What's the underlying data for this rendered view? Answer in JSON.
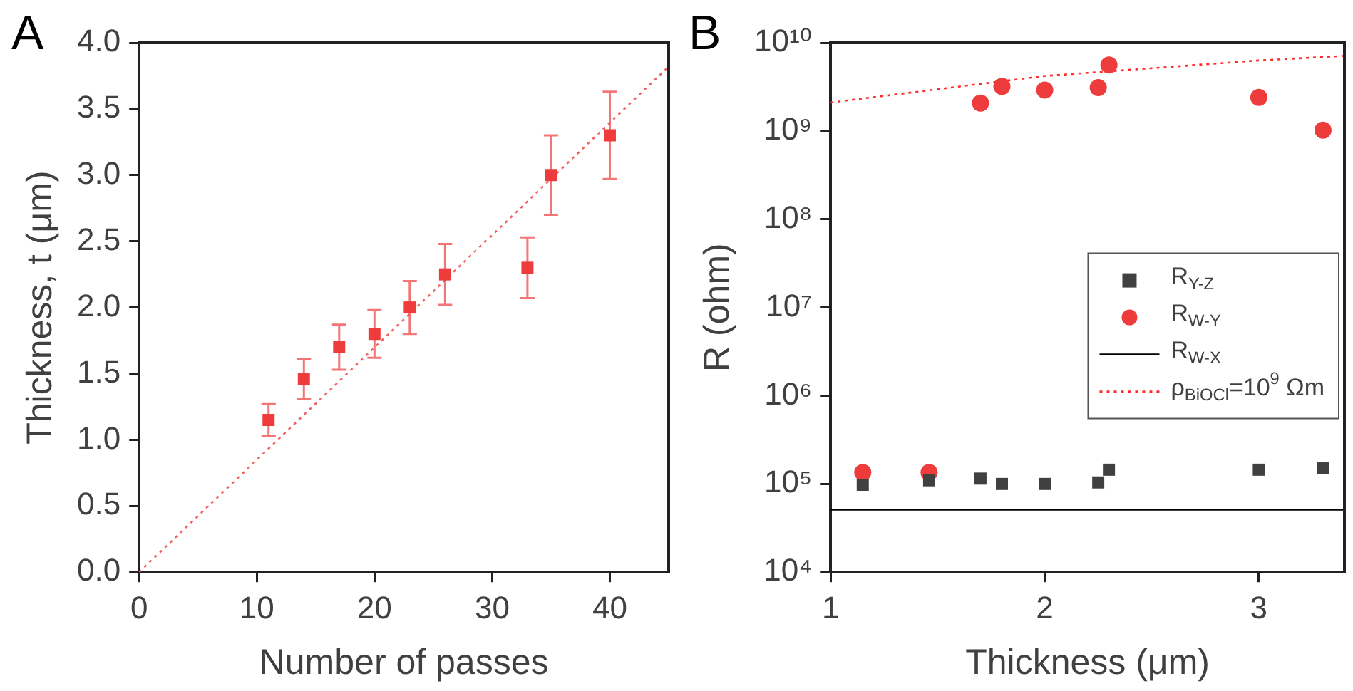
{
  "chart_data": [
    {
      "type": "scatter",
      "xlabel": "Number of passes",
      "ylabel": "Thickness, t (μm)",
      "annotations": [
        "A"
      ],
      "xlim": [
        0,
        45
      ],
      "xticks": [
        0,
        10,
        20,
        30,
        40
      ],
      "ylim": [
        0,
        4
      ],
      "yticks": [
        {
          "value": 0,
          "label": "0.0"
        },
        0.5,
        {
          "value": 1,
          "label": "1.0"
        },
        1.5,
        {
          "value": 2,
          "label": "2.0"
        },
        2.5,
        {
          "value": 3,
          "label": "3.0"
        },
        3.5,
        {
          "value": 4,
          "label": "4.0"
        }
      ],
      "grid": false,
      "legend": false,
      "series": [
        {
          "type": "scatter",
          "marker": "square",
          "color": "#ee3b3b",
          "x": [
            11,
            14,
            17,
            20,
            23,
            26,
            33,
            35,
            40
          ],
          "values": [
            1.15,
            1.46,
            1.7,
            1.8,
            2.0,
            2.25,
            2.3,
            3.0,
            3.3
          ],
          "errors": [
            0.12,
            0.15,
            0.17,
            0.18,
            0.2,
            0.23,
            0.23,
            0.3,
            0.33
          ]
        },
        {
          "type": "line",
          "line_style": "dotted",
          "color": "#f26060",
          "x": [
            0,
            45
          ],
          "values": [
            0,
            3.82
          ]
        }
      ]
    },
    {
      "type": "scatter",
      "xlabel": "Thickness (μm)",
      "ylabel": "R (ohm)",
      "annotations": [
        "B"
      ],
      "log": "y",
      "xlim": [
        1,
        3.4
      ],
      "xticks": [
        1,
        2,
        3
      ],
      "ylim": [
        10000,
        10000000000
      ],
      "yticks": [
        {
          "value": 10000,
          "label": "10⁴"
        },
        {
          "value": 100000,
          "label": "10⁵"
        },
        {
          "value": 1000000,
          "label": "10⁶"
        },
        {
          "value": 10000000,
          "label": "10⁷"
        },
        {
          "value": 100000000,
          "label": "10⁸"
        },
        {
          "value": 1000000000,
          "label": "10⁹"
        },
        {
          "value": 10000000000,
          "label": "10¹⁰"
        }
      ],
      "grid": false,
      "legend": "right",
      "series": [
        {
          "name": "R$_{Y-Z}$",
          "type": "scatter",
          "marker": "square",
          "color": "#404040",
          "x": [
            1.15,
            1.46,
            1.7,
            1.8,
            2.0,
            2.25,
            2.3,
            3.0,
            3.3
          ],
          "values": [
            98000,
            110000,
            115000,
            100000,
            100000,
            104000,
            145000,
            145000,
            150000
          ]
        },
        {
          "name": "R$_{W-Y}$",
          "type": "scatter",
          "marker": "circle",
          "color": "#ee3b3b",
          "x": [
            1.15,
            1.46,
            1.7,
            1.8,
            2.0,
            2.25,
            2.3,
            3.0,
            3.3
          ],
          "values": [
            135000,
            135000,
            2070000000,
            3200000000,
            2900000000,
            3100000000,
            5600000000,
            2400000000,
            1020000000
          ]
        },
        {
          "name": "R$_{W-X}$",
          "type": "line",
          "line_style": "solid",
          "color": "#000000",
          "x": [
            1,
            3.4
          ],
          "values": [
            51000,
            51000
          ]
        },
        {
          "name": "ρ$_{BiOCl}$=10$^{9}$ Ωm",
          "type": "line",
          "line_style": "dotted",
          "color": "#ff2a2a",
          "x": [
            1,
            2,
            3,
            3.4
          ],
          "values": [
            2100000000,
            4200000000,
            6300000000,
            7100000000
          ]
        }
      ]
    }
  ]
}
